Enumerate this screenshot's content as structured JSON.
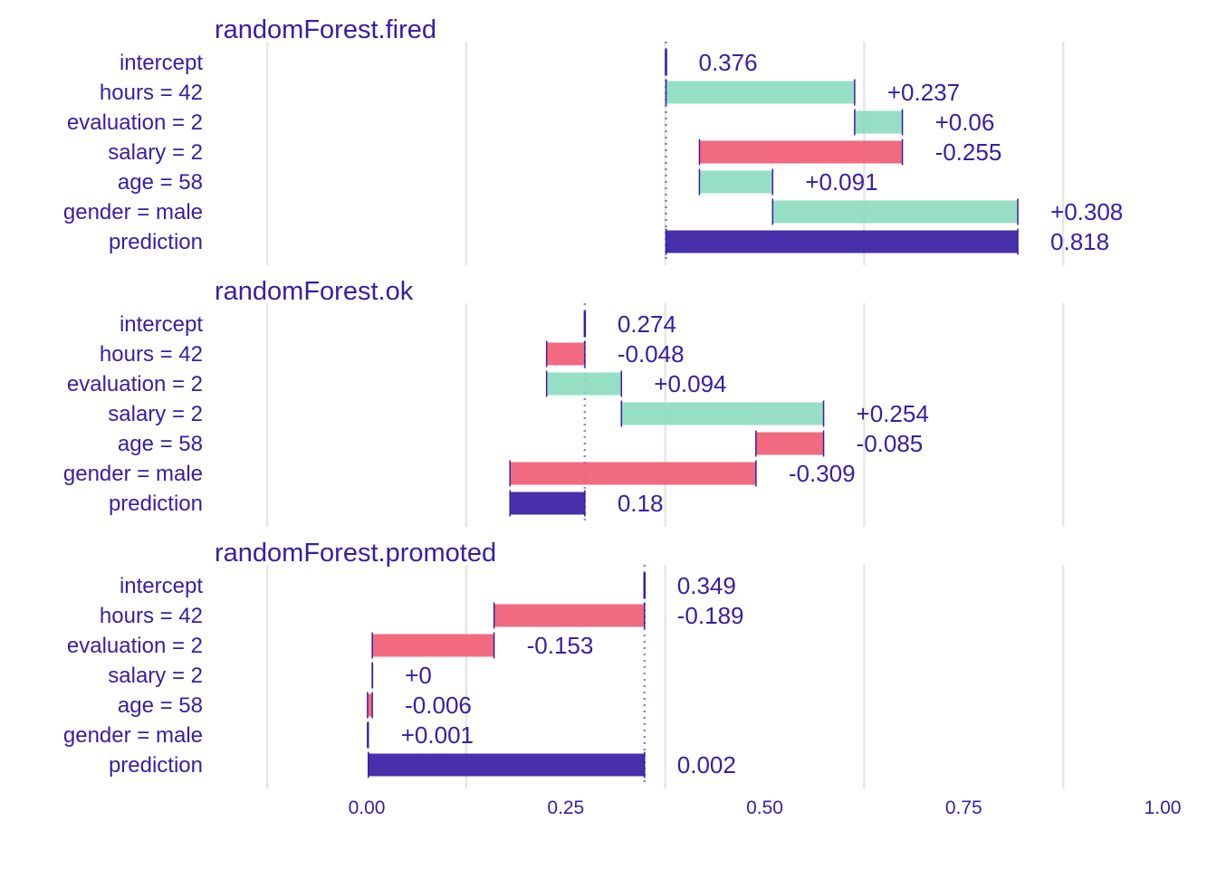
{
  "colors": {
    "positive": "#8bdcbe",
    "negative": "#f05a71",
    "prediction": "#371ea3",
    "text": "#371ea3",
    "grid": "#e6e6e6"
  },
  "chart_data": {
    "type": "bar",
    "subtype": "break-down",
    "xlim": [
      -0.25,
      1.0
    ],
    "x_ticks": [
      "0.00",
      "0.25",
      "0.50",
      "0.75",
      "1.00"
    ],
    "x_tick_values": [
      0,
      0.25,
      0.5,
      0.75,
      1.0
    ],
    "grid": true,
    "legend": "none",
    "panels": [
      {
        "title": "randomForest.fired",
        "intercept": 0.376,
        "rows": [
          {
            "variable": "intercept",
            "label": "0.376",
            "start": 0.376,
            "end": 0.376,
            "kind": "intercept"
          },
          {
            "variable": "hours = 42",
            "label": "+0.237",
            "start": 0.376,
            "end": 0.613,
            "kind": "positive"
          },
          {
            "variable": "evaluation = 2",
            "label": "+0.06",
            "start": 0.613,
            "end": 0.673,
            "kind": "positive"
          },
          {
            "variable": "salary = 2",
            "label": "-0.255",
            "start": 0.673,
            "end": 0.418,
            "kind": "negative"
          },
          {
            "variable": "age = 58",
            "label": "+0.091",
            "start": 0.418,
            "end": 0.51,
            "kind": "positive"
          },
          {
            "variable": "gender = male",
            "label": "+0.308",
            "start": 0.51,
            "end": 0.818,
            "kind": "positive"
          },
          {
            "variable": "prediction",
            "label": "0.818",
            "start": 0.376,
            "end": 0.818,
            "kind": "prediction"
          }
        ]
      },
      {
        "title": "randomForest.ok",
        "intercept": 0.274,
        "rows": [
          {
            "variable": "intercept",
            "label": "0.274",
            "start": 0.274,
            "end": 0.274,
            "kind": "intercept"
          },
          {
            "variable": "hours = 42",
            "label": "-0.048",
            "start": 0.274,
            "end": 0.226,
            "kind": "negative"
          },
          {
            "variable": "evaluation = 2",
            "label": "+0.094",
            "start": 0.226,
            "end": 0.32,
            "kind": "positive"
          },
          {
            "variable": "salary = 2",
            "label": "+0.254",
            "start": 0.32,
            "end": 0.574,
            "kind": "positive"
          },
          {
            "variable": "age = 58",
            "label": "-0.085",
            "start": 0.574,
            "end": 0.489,
            "kind": "negative"
          },
          {
            "variable": "gender = male",
            "label": "-0.309",
            "start": 0.489,
            "end": 0.18,
            "kind": "negative"
          },
          {
            "variable": "prediction",
            "label": "0.18",
            "start": 0.274,
            "end": 0.18,
            "kind": "prediction"
          }
        ]
      },
      {
        "title": "randomForest.promoted",
        "intercept": 0.349,
        "rows": [
          {
            "variable": "intercept",
            "label": "0.349",
            "start": 0.349,
            "end": 0.349,
            "kind": "intercept"
          },
          {
            "variable": "hours = 42",
            "label": "-0.189",
            "start": 0.349,
            "end": 0.16,
            "kind": "negative"
          },
          {
            "variable": "evaluation = 2",
            "label": "-0.153",
            "start": 0.16,
            "end": 0.007,
            "kind": "negative"
          },
          {
            "variable": "salary = 2",
            "label": "+0",
            "start": 0.007,
            "end": 0.007,
            "kind": "positive"
          },
          {
            "variable": "age = 58",
            "label": "-0.006",
            "start": 0.007,
            "end": 0.001,
            "kind": "negative"
          },
          {
            "variable": "gender = male",
            "label": "+0.001",
            "start": 0.001,
            "end": 0.002,
            "kind": "positive"
          },
          {
            "variable": "prediction",
            "label": "0.002",
            "start": 0.349,
            "end": 0.002,
            "kind": "prediction"
          }
        ]
      }
    ]
  }
}
